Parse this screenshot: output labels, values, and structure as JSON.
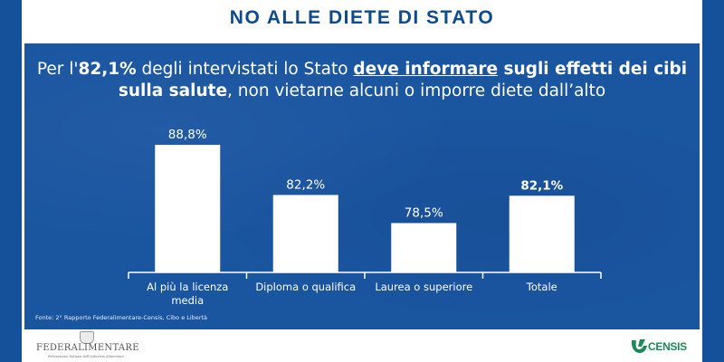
{
  "header": {
    "title": "NO ALLE DIETE DI STATO"
  },
  "headline": {
    "part1": "Per l'",
    "bold_value": "82,1%",
    "part2": "  degli intervistati lo Stato ",
    "underlined": "deve informare",
    "bold_after": " sugli effetti dei cibi",
    "bold_line2": "sulla salute",
    "part3": ", non vietarne alcuni o imporre diete dall’alto"
  },
  "source": "Fonte: 2° Rapporto Federalimentare-Censis, Cibo e Libertà",
  "logos": {
    "federalimentare_name": "FEDERALIMENTARE",
    "federalimentare_sub": "Federazione Italiana dell'Industria Alimentare",
    "censis_name": "CENSIS"
  },
  "colors": {
    "border": "#15509a",
    "panel": "#1a55a0",
    "title": "#0e4a8e",
    "bar": "#ffffff",
    "censis_green": "#1e8a5a"
  },
  "chart_data": {
    "type": "bar",
    "title": "NO ALLE DIETE DI STATO",
    "xlabel": "",
    "ylabel": "",
    "categories": [
      "Al più la licenza media",
      "Diploma o qualifica",
      "Laurea o superiore",
      "Totale"
    ],
    "category_lines": [
      [
        "Al più la licenza",
        "media"
      ],
      [
        "Diploma o qualifica"
      ],
      [
        "Laurea o superiore"
      ],
      [
        "Totale"
      ]
    ],
    "values": [
      88.8,
      82.2,
      78.5,
      82.1
    ],
    "value_labels": [
      "88,8%",
      "82,2%",
      "78,5%",
      "82,1%"
    ],
    "highlight_index": 3,
    "ylim": [
      72,
      90
    ],
    "grid": false,
    "legend": "none"
  }
}
